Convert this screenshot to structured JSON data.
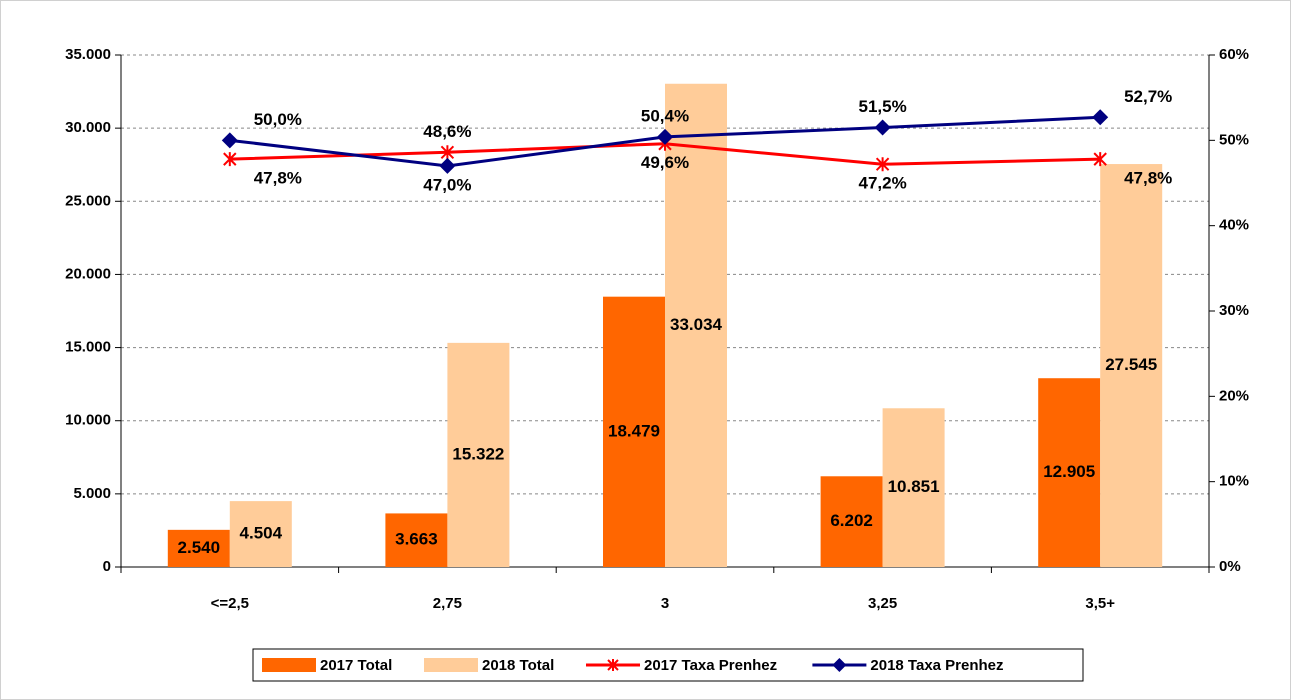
{
  "chart_data": {
    "type": "bar",
    "categories": [
      "<=2,5",
      "2,75",
      "3",
      "3,25",
      "3,5+"
    ],
    "series": [
      {
        "name": "2017 Total",
        "type": "bar",
        "color": "#ff6600",
        "values": [
          2540,
          3663,
          18479,
          6202,
          12905
        ],
        "value_labels": [
          "2.540",
          "3.663",
          "18.479",
          "6.202",
          "12.905"
        ]
      },
      {
        "name": "2018 Total",
        "type": "bar",
        "color": "#ffcc99",
        "values": [
          4504,
          15322,
          33034,
          10851,
          27545
        ],
        "value_labels": [
          "4.504",
          "15.322",
          "33.034",
          "10.851",
          "27.545"
        ]
      },
      {
        "name": "2017 Taxa Prenhez",
        "type": "line",
        "axis": "y2",
        "marker": "star",
        "color": "#ff0000",
        "values": [
          47.8,
          48.6,
          49.6,
          47.2,
          47.8
        ],
        "value_labels": [
          "47,8%",
          "48,6%",
          "49,6%",
          "47,2%",
          "47,8%"
        ]
      },
      {
        "name": "2018 Taxa Prenhez",
        "type": "line",
        "axis": "y2",
        "marker": "diamond",
        "color": "#000080",
        "values": [
          50.0,
          47.0,
          50.4,
          51.5,
          52.7
        ],
        "value_labels": [
          "50,0%",
          "47,0%",
          "50,4%",
          "51,5%",
          "52,7%"
        ]
      }
    ],
    "ylim": [
      0,
      35000
    ],
    "yticks": [
      0,
      {
        "value": 5000,
        "label": "5.000"
      },
      {
        "value": 10000,
        "label": "10.000"
      },
      {
        "value": 15000,
        "label": "15.000"
      },
      {
        "value": 20000,
        "label": "20.000"
      },
      {
        "value": 25000,
        "label": "25.000"
      },
      {
        "value": 30000,
        "label": "30.000"
      },
      {
        "value": 35000,
        "label": "35.000"
      }
    ],
    "y2lim": [
      0,
      60
    ],
    "y2ticks": [
      {
        "value": 0,
        "label": "0%"
      },
      {
        "value": 10,
        "label": "10%"
      },
      {
        "value": 20,
        "label": "20%"
      },
      {
        "value": 30,
        "label": "30%"
      },
      {
        "value": 40,
        "label": "40%"
      },
      {
        "value": 50,
        "label": "50%"
      },
      {
        "value": 60,
        "label": "60%"
      }
    ],
    "grid": true,
    "legend": "bottom"
  }
}
